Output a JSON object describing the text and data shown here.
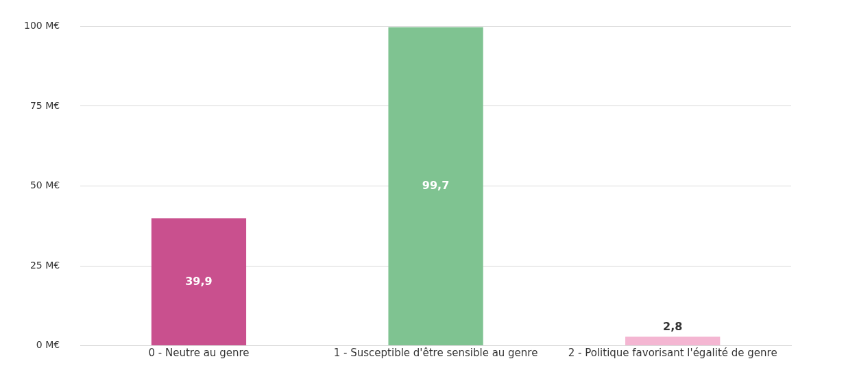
{
  "chart_data": {
    "type": "bar",
    "categories": [
      "0 - Neutre au genre",
      "1 - Susceptible d'être sensible au genre",
      "2 - Politique favorisant l'égalité de genre"
    ],
    "values": [
      39.9,
      99.7,
      2.8
    ],
    "colors": [
      "#c9508e",
      "#7fc391",
      "#f4b6d2"
    ],
    "value_labels": [
      "39,9",
      "99,7",
      "2,8"
    ],
    "ylim": [
      0,
      100
    ],
    "yticks": [
      {
        "value": 0,
        "label": "0 M€"
      },
      {
        "value": 25,
        "label": "25 M€"
      },
      {
        "value": 50,
        "label": "50 M€"
      },
      {
        "value": 75,
        "label": "75 M€"
      },
      {
        "value": 100,
        "label": "100 M€"
      }
    ],
    "grid": "y",
    "legend": false
  }
}
